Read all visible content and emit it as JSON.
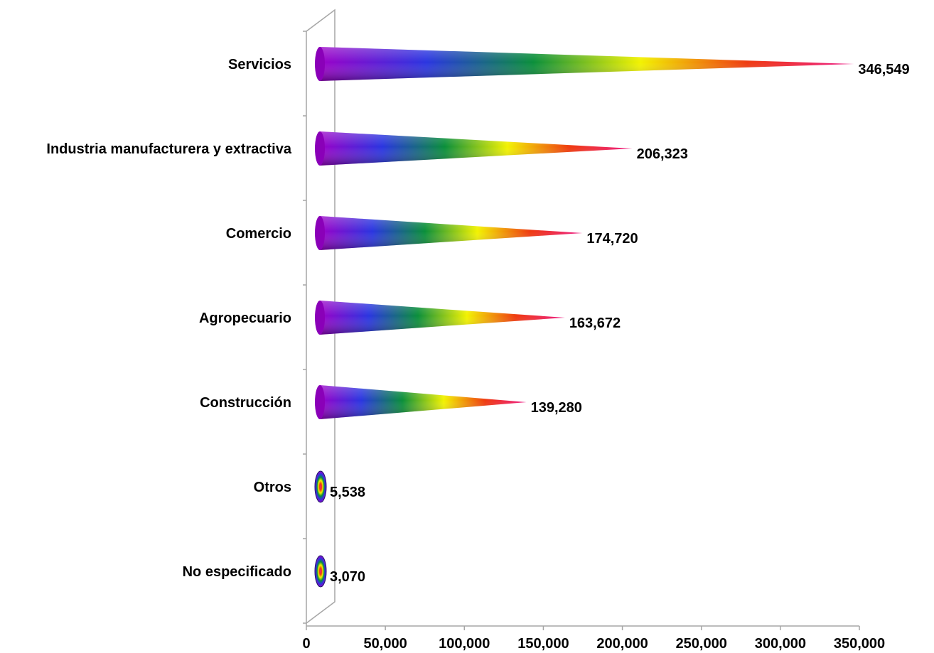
{
  "chart_data": {
    "type": "bar",
    "orientation": "horizontal",
    "style": "3d-cone",
    "categories": [
      "Servicios",
      "Industria manufacturera y extractiva",
      "Comercio",
      "Agropecuario",
      "Construcción",
      "Otros",
      "No especificado"
    ],
    "values": [
      346549,
      206323,
      174720,
      163672,
      139280,
      5538,
      3070
    ],
    "value_labels": [
      "346,549",
      "206,323",
      "174,720",
      "163,672",
      "139,280",
      "5,538",
      "3,070"
    ],
    "x_ticks": [
      "0",
      "50,000",
      "100,000",
      "150,000",
      "200,000",
      "250,000",
      "300,000",
      "350,000"
    ],
    "xlim": [
      0,
      350000
    ],
    "title": "",
    "xlabel": "",
    "ylabel": "",
    "grid": false,
    "legend": "none",
    "gradient_colors": [
      "#9b00c8",
      "#2a35e0",
      "#0a8f3a",
      "#f2f200",
      "#ef3a10",
      "#ee1a86"
    ]
  }
}
